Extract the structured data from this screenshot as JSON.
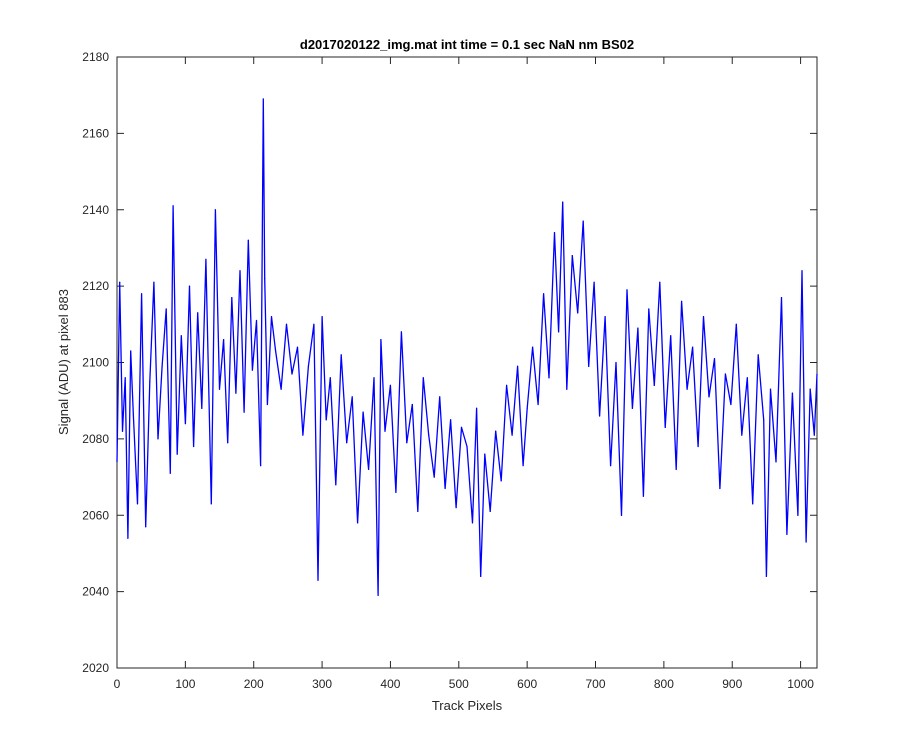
{
  "chart_data": {
    "type": "line",
    "title": "d2017020122_img.mat int time = 0.1 sec  NaN nm BS02",
    "xlabel": "Track Pixels",
    "ylabel": "Signal (ADU) at pixel 883",
    "xlim": [
      0,
      1024
    ],
    "ylim": [
      2020,
      2180
    ],
    "xticks": [
      0,
      100,
      200,
      300,
      400,
      500,
      600,
      700,
      800,
      900,
      1000
    ],
    "yticks": [
      2020,
      2040,
      2060,
      2080,
      2100,
      2120,
      2140,
      2160,
      2180
    ],
    "grid": false,
    "line_color": "#0000ff",
    "series": [
      {
        "x": [
          0,
          4,
          8,
          12,
          16,
          20,
          24,
          30,
          36,
          42,
          48,
          54,
          60,
          66,
          72,
          78,
          82,
          88,
          94,
          100,
          106,
          112,
          118,
          124,
          130,
          138,
          144,
          150,
          156,
          162,
          168,
          174,
          180,
          186,
          192,
          198,
          204,
          210,
          214,
          216,
          220,
          226,
          232,
          240,
          248,
          256,
          264,
          272,
          280,
          288,
          294,
          300,
          306,
          312,
          320,
          328,
          336,
          344,
          352,
          360,
          368,
          376,
          382,
          386,
          392,
          400,
          408,
          416,
          424,
          432,
          440,
          448,
          456,
          464,
          472,
          480,
          488,
          496,
          504,
          512,
          520,
          526,
          532,
          538,
          546,
          554,
          562,
          570,
          578,
          586,
          594,
          600,
          608,
          616,
          624,
          632,
          640,
          646,
          652,
          658,
          666,
          674,
          682,
          690,
          698,
          706,
          714,
          722,
          730,
          738,
          746,
          754,
          762,
          770,
          778,
          786,
          794,
          802,
          810,
          818,
          826,
          834,
          842,
          850,
          858,
          866,
          874,
          882,
          890,
          898,
          906,
          914,
          922,
          930,
          938,
          946,
          950,
          956,
          964,
          972,
          980,
          988,
          996,
          1002,
          1008,
          1014,
          1020,
          1024
        ],
        "y": [
          2074,
          2121,
          2082,
          2096,
          2054,
          2103,
          2086,
          2063,
          2118,
          2057,
          2095,
          2121,
          2080,
          2099,
          2114,
          2071,
          2141,
          2076,
          2107,
          2084,
          2120,
          2078,
          2113,
          2088,
          2127,
          2063,
          2140,
          2093,
          2106,
          2079,
          2117,
          2092,
          2124,
          2087,
          2132,
          2098,
          2111,
          2073,
          2169,
          2122,
          2089,
          2112,
          2103,
          2093,
          2110,
          2097,
          2104,
          2081,
          2099,
          2110,
          2043,
          2112,
          2085,
          2096,
          2068,
          2102,
          2079,
          2091,
          2058,
          2087,
          2072,
          2096,
          2039,
          2106,
          2082,
          2094,
          2066,
          2108,
          2079,
          2089,
          2061,
          2096,
          2081,
          2070,
          2091,
          2067,
          2085,
          2062,
          2083,
          2078,
          2058,
          2088,
          2044,
          2076,
          2061,
          2082,
          2069,
          2094,
          2081,
          2099,
          2073,
          2088,
          2104,
          2089,
          2118,
          2096,
          2134,
          2108,
          2142,
          2093,
          2128,
          2113,
          2137,
          2099,
          2121,
          2086,
          2112,
          2073,
          2100,
          2060,
          2119,
          2088,
          2109,
          2065,
          2114,
          2094,
          2121,
          2083,
          2107,
          2072,
          2116,
          2093,
          2104,
          2078,
          2112,
          2091,
          2101,
          2067,
          2097,
          2089,
          2110,
          2081,
          2096,
          2063,
          2102,
          2085,
          2044,
          2093,
          2074,
          2117,
          2055,
          2092,
          2060,
          2124,
          2053,
          2093,
          2081,
          2097
        ]
      }
    ]
  }
}
